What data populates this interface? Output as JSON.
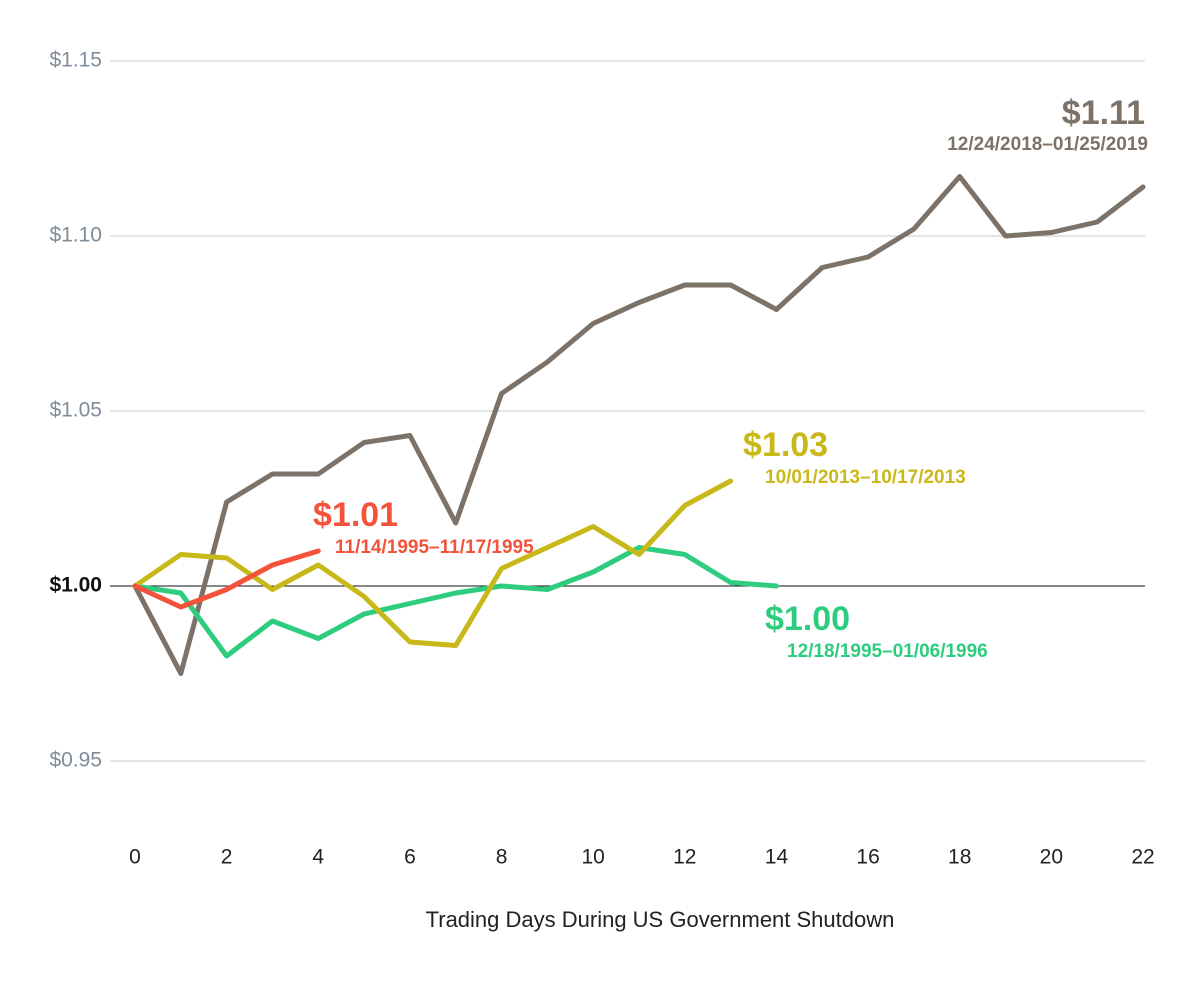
{
  "chart_data": {
    "type": "line",
    "x_label": "Trading Days During US Government Shutdown",
    "x": [
      0,
      1,
      2,
      3,
      4,
      5,
      6,
      7,
      8,
      9,
      10,
      11,
      12,
      13,
      14,
      15,
      16,
      17,
      18,
      19,
      20,
      21,
      22
    ],
    "xlim": [
      0,
      22
    ],
    "xticks": [
      0,
      2,
      4,
      6,
      8,
      10,
      12,
      14,
      16,
      18,
      20,
      22
    ],
    "ylim": [
      0.93,
      1.15
    ],
    "yticks": [
      {
        "value": 0.95,
        "label": "$0.95"
      },
      {
        "value": 1.0,
        "label": "$1.00"
      },
      {
        "value": 1.05,
        "label": "$1.05"
      },
      {
        "value": 1.1,
        "label": "$1.10"
      },
      {
        "value": 1.15,
        "label": "$1.15"
      }
    ],
    "grid": true,
    "reference_line": 1.0,
    "series": [
      {
        "name": "12/24/2018–01/25/2019",
        "annotation": "$1.11",
        "color": "#7d7268",
        "values": [
          1.0,
          0.975,
          1.024,
          1.032,
          1.032,
          1.041,
          1.043,
          1.018,
          1.055,
          1.064,
          1.075,
          1.081,
          1.086,
          1.086,
          1.079,
          1.091,
          1.094,
          1.102,
          1.117,
          1.1,
          1.101,
          1.104,
          1.114
        ]
      },
      {
        "name": "12/18/1995–01/06/1996",
        "annotation": "$1.00",
        "color": "#2ecc7f",
        "values": [
          1.0,
          0.998,
          0.98,
          0.99,
          0.985,
          0.992,
          0.995,
          0.998,
          1.0,
          0.999,
          1.004,
          1.011,
          1.009,
          1.001,
          1.0,
          null,
          null,
          null,
          null,
          null,
          null,
          null,
          null
        ]
      },
      {
        "name": "10/01/2013–10/17/2013",
        "annotation": "$1.03",
        "color": "#c9b81a",
        "values": [
          1.0,
          1.009,
          1.008,
          0.999,
          1.006,
          0.997,
          0.984,
          0.983,
          1.005,
          1.011,
          1.017,
          1.009,
          1.023,
          1.03,
          null,
          null,
          null,
          null,
          null,
          null,
          null,
          null,
          null
        ]
      },
      {
        "name": "11/14/1995–11/17/1995",
        "annotation": "$1.01",
        "color": "#f4533a",
        "values": [
          1.0,
          0.994,
          0.999,
          1.006,
          1.01,
          null,
          null,
          null,
          null,
          null,
          null,
          null,
          null,
          null,
          null,
          null,
          null,
          null,
          null,
          null,
          null,
          null,
          null
        ]
      }
    ]
  }
}
